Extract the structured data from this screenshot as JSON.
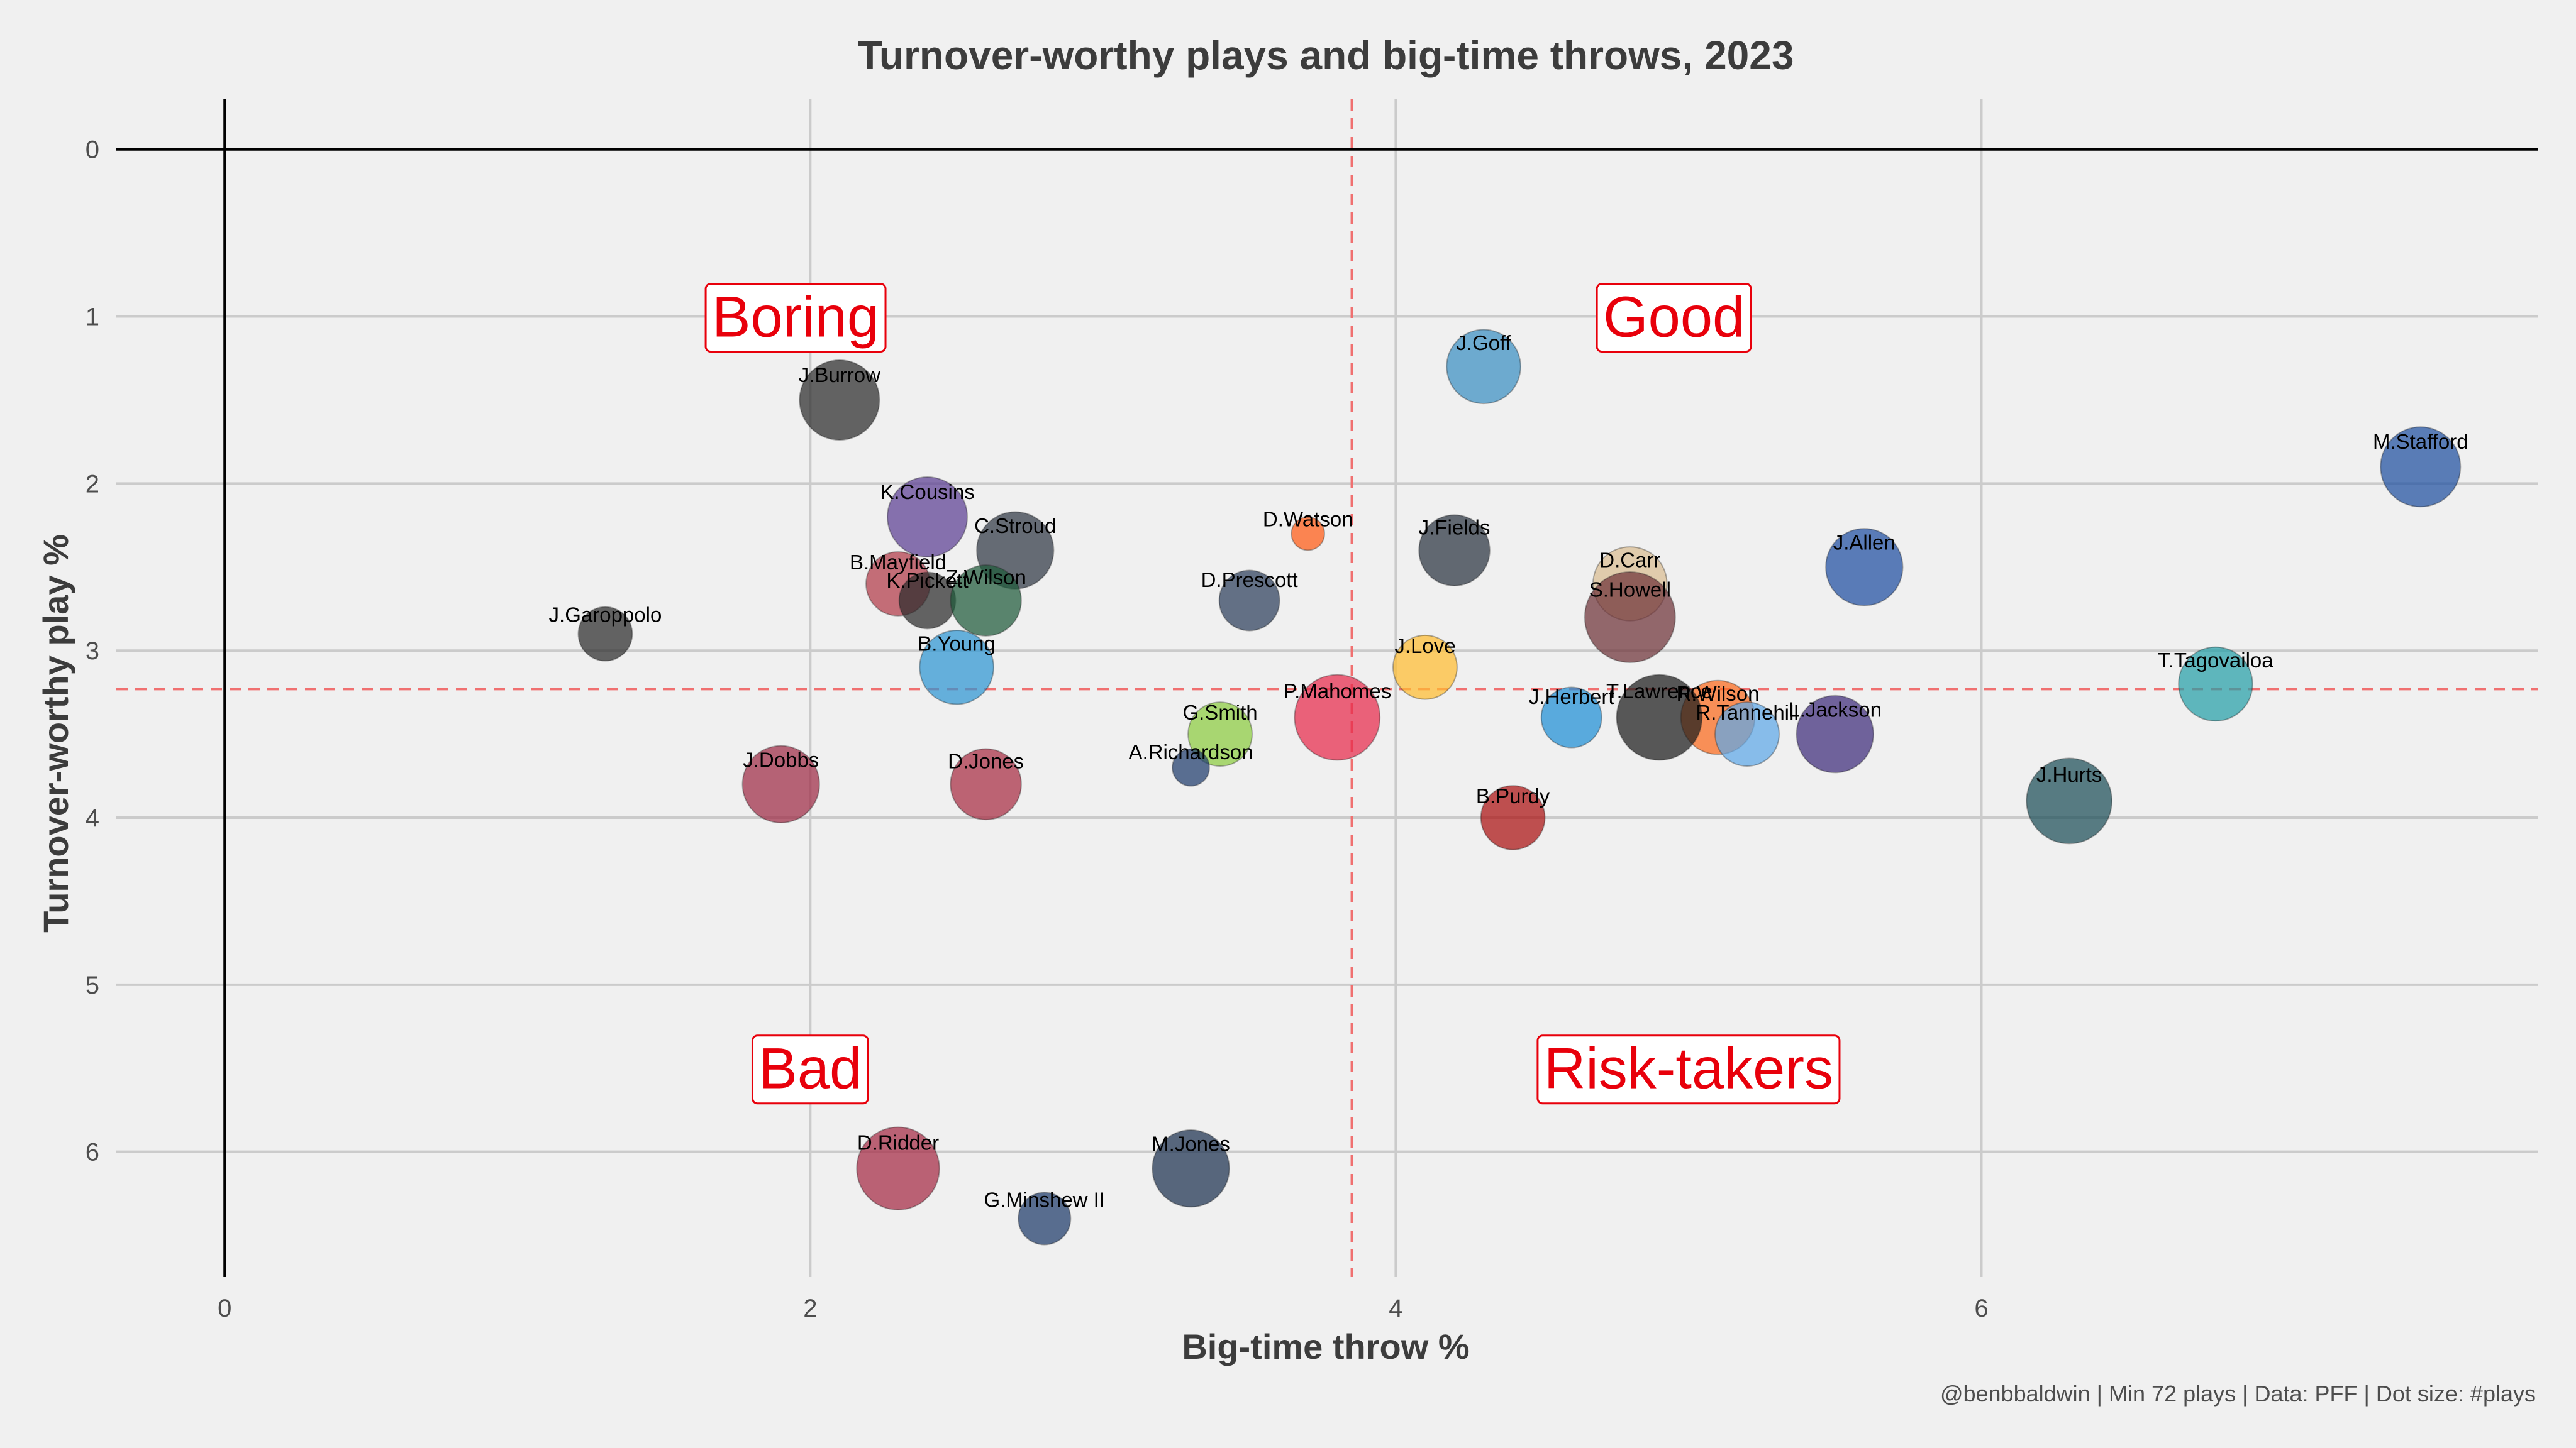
{
  "chart_data": {
    "type": "scatter",
    "title": "Turnover-worthy plays and big-time throws, 2023",
    "xlabel": "Big-time throw %",
    "ylabel": "Turnover-worthy play %",
    "caption": "@benbbaldwin | Min 72 plays | Data: PFF | Dot size: #plays",
    "xlim": [
      -0.37,
      7.9
    ],
    "ylim": [
      -0.3,
      6.75
    ],
    "y_reversed": true,
    "x_ticks": [
      0,
      2,
      4,
      6
    ],
    "y_ticks": [
      0,
      1,
      2,
      3,
      4,
      5,
      6
    ],
    "grid": true,
    "reference_lines": {
      "x_mean": 3.85,
      "y_mean": 3.23
    },
    "quadrants": [
      {
        "label": "Boring",
        "x": 1.95,
        "y": 1.0
      },
      {
        "label": "Good",
        "x": 4.95,
        "y": 1.0
      },
      {
        "label": "Bad",
        "x": 2.0,
        "y": 5.5
      },
      {
        "label": "Risk-takers",
        "x": 5.0,
        "y": 5.5
      }
    ],
    "points": [
      {
        "name": "J.Goff",
        "x": 4.3,
        "y": 1.3,
        "size": 600,
        "color": "#3a8fc2"
      },
      {
        "name": "M.Stafford",
        "x": 7.5,
        "y": 1.9,
        "size": 700,
        "color": "#1e4fa0"
      },
      {
        "name": "J.Burrow",
        "x": 2.1,
        "y": 1.5,
        "size": 700,
        "color": "#2b2b2b"
      },
      {
        "name": "K.Cousins",
        "x": 2.4,
        "y": 2.2,
        "size": 700,
        "color": "#5b3f93"
      },
      {
        "name": "C.Stroud",
        "x": 2.7,
        "y": 2.4,
        "size": 650,
        "color": "#2f3744"
      },
      {
        "name": "D.Watson",
        "x": 3.7,
        "y": 2.3,
        "size": 120,
        "color": "#ff5a14"
      },
      {
        "name": "J.Fields",
        "x": 4.2,
        "y": 2.4,
        "size": 550,
        "color": "#2a3340"
      },
      {
        "name": "J.Allen",
        "x": 5.6,
        "y": 2.5,
        "size": 650,
        "color": "#1f4ea1"
      },
      {
        "name": "D.Carr",
        "x": 4.8,
        "y": 2.6,
        "size": 600,
        "color": "#d9bd92"
      },
      {
        "name": "B.Mayfield",
        "x": 2.3,
        "y": 2.6,
        "size": 450,
        "color": "#b23a48"
      },
      {
        "name": "K.Pickett",
        "x": 2.4,
        "y": 2.7,
        "size": 350,
        "color": "#2b2b2b"
      },
      {
        "name": "Z.Wilson",
        "x": 2.6,
        "y": 2.7,
        "size": 550,
        "color": "#1f5a3a"
      },
      {
        "name": "D.Prescott",
        "x": 3.5,
        "y": 2.7,
        "size": 400,
        "color": "#2c3e5c"
      },
      {
        "name": "S.Howell",
        "x": 4.8,
        "y": 2.8,
        "size": 900,
        "color": "#6e3238"
      },
      {
        "name": "J.Garoppolo",
        "x": 1.3,
        "y": 2.9,
        "size": 320,
        "color": "#2b2b2b"
      },
      {
        "name": "B.Young",
        "x": 2.5,
        "y": 3.1,
        "size": 600,
        "color": "#2e95d3"
      },
      {
        "name": "J.Love",
        "x": 4.1,
        "y": 3.1,
        "size": 450,
        "color": "#ffbc30"
      },
      {
        "name": "T.Tagovailoa",
        "x": 6.8,
        "y": 3.2,
        "size": 600,
        "color": "#26a0a8"
      },
      {
        "name": "P.Mahomes",
        "x": 3.8,
        "y": 3.4,
        "size": 800,
        "color": "#e8294b"
      },
      {
        "name": "J.Herbert",
        "x": 4.6,
        "y": 3.4,
        "size": 400,
        "color": "#1f8fd6"
      },
      {
        "name": "R.Wilson",
        "x": 5.1,
        "y": 3.4,
        "size": 600,
        "color": "#fb6a1c"
      },
      {
        "name": "T.Lawrence",
        "x": 4.9,
        "y": 3.4,
        "size": 800,
        "color": "#1c1c1c"
      },
      {
        "name": "R.Tannehill",
        "x": 5.2,
        "y": 3.5,
        "size": 450,
        "color": "#5ea7e8"
      },
      {
        "name": "L.Jackson",
        "x": 5.5,
        "y": 3.5,
        "size": 650,
        "color": "#3d2b7a"
      },
      {
        "name": "G.Smith",
        "x": 3.4,
        "y": 3.5,
        "size": 450,
        "color": "#8ccc40"
      },
      {
        "name": "A.Richardson",
        "x": 3.3,
        "y": 3.7,
        "size": 150,
        "color": "#1f3c6c"
      },
      {
        "name": "D.Jones",
        "x": 2.6,
        "y": 3.8,
        "size": 550,
        "color": "#a82c42"
      },
      {
        "name": "J.Dobbs",
        "x": 1.9,
        "y": 3.8,
        "size": 650,
        "color": "#9e2b45"
      },
      {
        "name": "J.Hurts",
        "x": 6.3,
        "y": 3.9,
        "size": 800,
        "color": "#1c4d58"
      },
      {
        "name": "B.Purdy",
        "x": 4.4,
        "y": 4.0,
        "size": 450,
        "color": "#aa1111"
      },
      {
        "name": "M.Jones",
        "x": 3.3,
        "y": 6.1,
        "size": 650,
        "color": "#1c304f"
      },
      {
        "name": "D.Ridder",
        "x": 2.3,
        "y": 6.1,
        "size": 750,
        "color": "#a52a44"
      },
      {
        "name": "G.Minshew II",
        "x": 2.8,
        "y": 6.4,
        "size": 300,
        "color": "#1d3a6a"
      }
    ]
  }
}
